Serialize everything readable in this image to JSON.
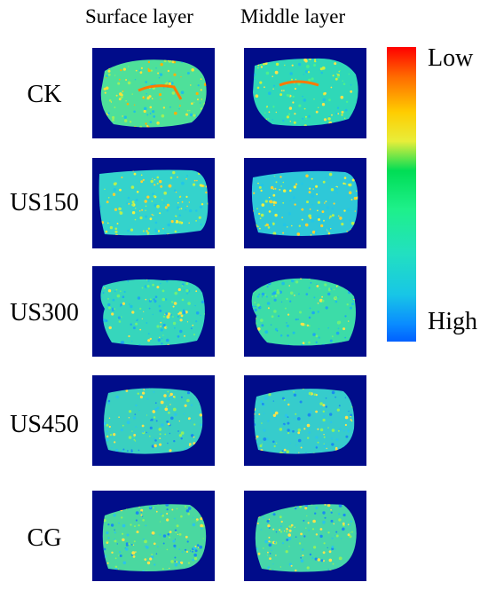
{
  "headers": {
    "surface": "Surface layer",
    "middle": "Middle layer"
  },
  "rows": [
    {
      "label": "CK"
    },
    {
      "label": "US150"
    },
    {
      "label": "US300"
    },
    {
      "label": "US450"
    },
    {
      "label": "CG"
    }
  ],
  "colorbar": {
    "low": "Low",
    "high": "High",
    "colors": [
      "#ff0000",
      "#ffcc00",
      "#00dd55",
      "#22e0c0",
      "#0060ff"
    ]
  },
  "panel_background": "#000c8a"
}
